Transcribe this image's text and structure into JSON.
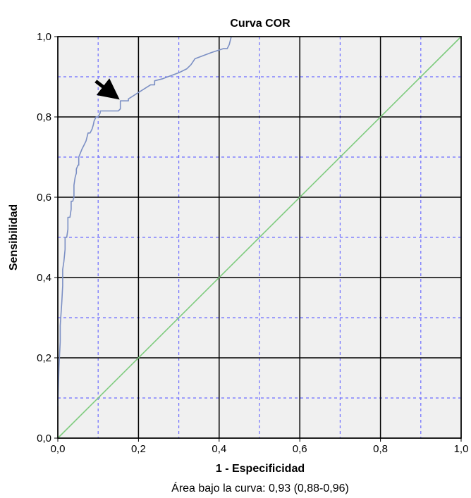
{
  "chart_data": {
    "type": "line",
    "title": "Curva COR",
    "xlabel": "1 - Especificidad",
    "ylabel": "Sensibilidad",
    "annotation": "Área bajo la curva: 0,93 (0,88-0,96)",
    "xlim": [
      0,
      1
    ],
    "ylim": [
      0,
      1
    ],
    "x_ticks": [
      "0,0",
      "0,2",
      "0,4",
      "0,6",
      "0,8",
      "1,0"
    ],
    "y_ticks": [
      "0,0",
      "0,2",
      "0,4",
      "0,6",
      "0,8",
      "1,0"
    ],
    "major_grid": [
      0.2,
      0.4,
      0.6,
      0.8
    ],
    "minor_grid": [
      0.1,
      0.3,
      0.5,
      0.7,
      0.9
    ],
    "grid": true,
    "series": [
      {
        "color": "#7b8fc4",
        "x": [
          0.0,
          0.003,
          0.006,
          0.006,
          0.01,
          0.012,
          0.012,
          0.015,
          0.018,
          0.018,
          0.022,
          0.025,
          0.025,
          0.03,
          0.033,
          0.033,
          0.037,
          0.04,
          0.04,
          0.043,
          0.046,
          0.046,
          0.05,
          0.052,
          0.052,
          0.056,
          0.06,
          0.065,
          0.07,
          0.075,
          0.08,
          0.085,
          0.088,
          0.09,
          0.095,
          0.1,
          0.105,
          0.105,
          0.15,
          0.155,
          0.155,
          0.175,
          0.175,
          0.23,
          0.24,
          0.24,
          0.26,
          0.3,
          0.32,
          0.33,
          0.34,
          0.38,
          0.41,
          0.42,
          0.425,
          0.43
        ],
        "y": [
          0.08,
          0.18,
          0.24,
          0.28,
          0.34,
          0.38,
          0.42,
          0.44,
          0.47,
          0.5,
          0.5,
          0.52,
          0.55,
          0.55,
          0.57,
          0.59,
          0.59,
          0.6,
          0.63,
          0.65,
          0.66,
          0.67,
          0.68,
          0.68,
          0.7,
          0.71,
          0.72,
          0.73,
          0.74,
          0.76,
          0.76,
          0.77,
          0.78,
          0.79,
          0.8,
          0.8,
          0.81,
          0.815,
          0.815,
          0.82,
          0.84,
          0.84,
          0.845,
          0.88,
          0.88,
          0.89,
          0.895,
          0.91,
          0.92,
          0.93,
          0.945,
          0.96,
          0.97,
          0.97,
          0.98,
          1.0
        ]
      },
      {
        "color": "#7ecb7e",
        "x": [
          0,
          1
        ],
        "y": [
          0,
          1
        ]
      }
    ],
    "arrow_target": [
      0.15,
      0.84
    ]
  }
}
